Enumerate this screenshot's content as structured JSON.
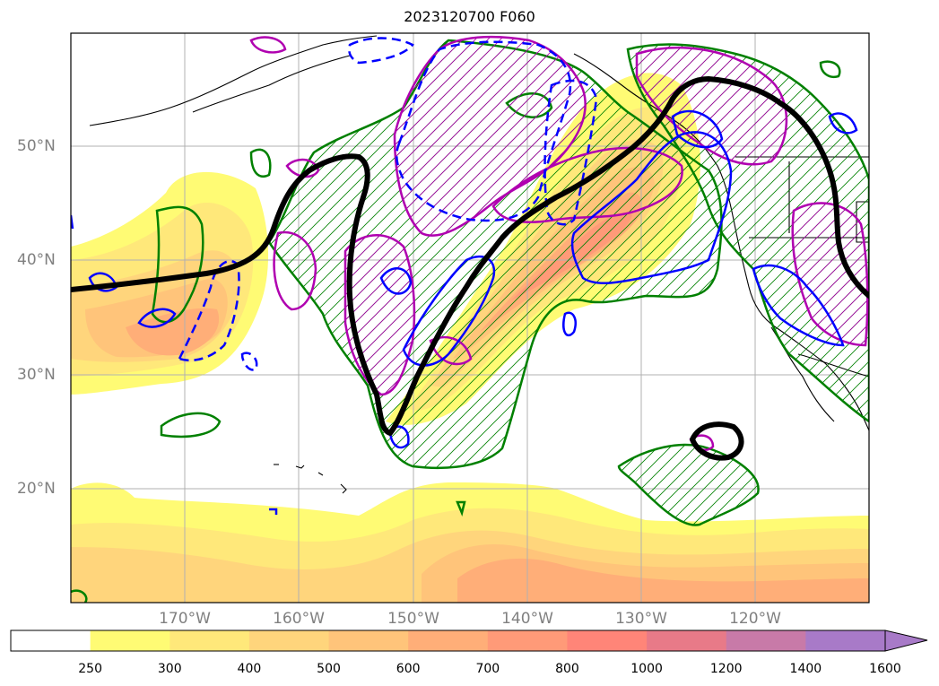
{
  "title": "2023120700 F060",
  "lat_labels": [
    "50°N",
    "40°N",
    "30°N",
    "20°N"
  ],
  "lon_labels": [
    "170°W",
    "160°W",
    "150°W",
    "140°W",
    "130°W",
    "120°W"
  ],
  "colorbar": {
    "ticks": [
      "250",
      "300",
      "400",
      "500",
      "600",
      "700",
      "800",
      "1000",
      "1200",
      "1400",
      "1600"
    ],
    "colors": [
      "#ffffff",
      "#fffb74",
      "#ffe87a",
      "#ffd57c",
      "#ffc47a",
      "#ffae78",
      "#ff9a78",
      "#ff8578",
      "#e87a88",
      "#c87aa8",
      "#a87ac8"
    ],
    "extend": "max"
  },
  "legend_colors": {
    "thick_contour": "#000000",
    "green_hatched": "#008000",
    "magenta_hatched": "#b000b0",
    "blue_contour": "#0000ff"
  }
}
